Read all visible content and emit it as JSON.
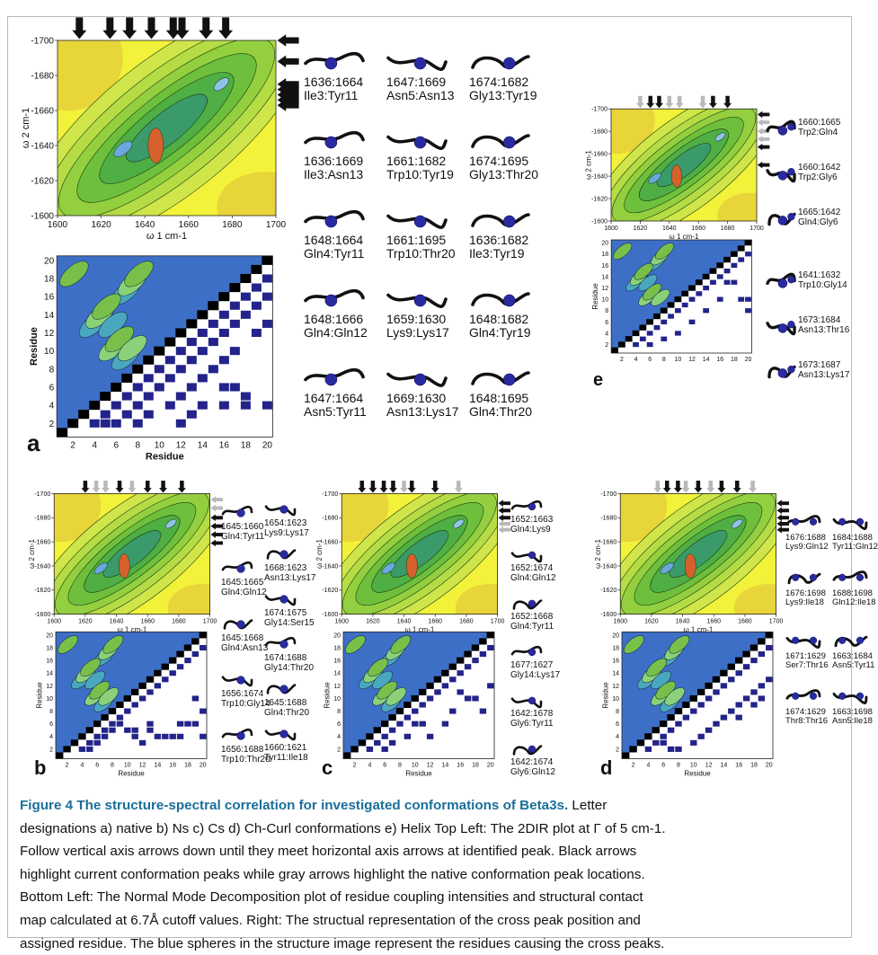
{
  "caption": {
    "figure_label": "Figure 4",
    "title": "The structure-spectral correlation for investigated conformations of Beta3s",
    "line1": "Letter",
    "line2": "designations a) native b) Ns c) Cs d) Ch-Curl conformations e) Helix Top Left: The 2DIR plot at Γ of 5 cm-1.",
    "line3": "Follow vertical axis arrows down until they meet horizontal axis arrows at identified peak. Black arrows",
    "line4": "highlight current conformation peaks while gray arrows highlight the native conformation peak locations.",
    "line5": "Bottom Left: The Normal Mode Decomposition plot of residue coupling intensities and structural contact",
    "line6": "map calculated at 6.7Å cutoff values. Right: The structual representation of the cross peak position and",
    "line7": "assigned residue. The blue spheres in the structure image represent the residues causing the cross peaks."
  },
  "colors": {
    "border": "#b8b8b8",
    "title": "#1a6e9a",
    "sphere": "#2a2aa0",
    "cell": "#23238a",
    "bg_yellow": "#f2f23a",
    "green": "#7fc93a",
    "blue": "#3a6fd0"
  },
  "panels": {
    "a": {
      "letter": "a",
      "ir_xlabel": "ω 1 cm-1",
      "ir_ylabel": "ω 2 cm-1",
      "ir_xticks": [
        "1600",
        "1620",
        "1640",
        "1660",
        "1680",
        "1700"
      ],
      "ir_yticks": [
        "-1700",
        "-1680",
        "-1660",
        "-1640",
        "-1620",
        "-1600"
      ],
      "map_xlabel": "Residue",
      "map_ylabel": "Residue",
      "map_ticks": [
        "2",
        "4",
        "6",
        "8",
        "10",
        "12",
        "14",
        "16",
        "18",
        "20"
      ],
      "structures": [
        {
          "peak": "1636:1664",
          "res": "Ile3:Tyr11"
        },
        {
          "peak": "1647:1669",
          "res": "Asn5:Asn13"
        },
        {
          "peak": "1674:1682",
          "res": "Gly13:Tyr19"
        },
        {
          "peak": "1636:1669",
          "res": "Ile3:Asn13"
        },
        {
          "peak": "1661:1682",
          "res": "Trp10:Tyr19"
        },
        {
          "peak": "1674:1695",
          "res": "Gly13:Thr20"
        },
        {
          "peak": "1648:1664",
          "res": "Gln4:Tyr11"
        },
        {
          "peak": "1661:1695",
          "res": "Trp10:Thr20"
        },
        {
          "peak": "1636:1682",
          "res": "Ile3:Tyr19"
        },
        {
          "peak": "1648:1666",
          "res": "Gln4:Gln12"
        },
        {
          "peak": "1659:1630",
          "res": "Lys9:Lys17"
        },
        {
          "peak": "1648:1682",
          "res": "Gln4:Tyr19"
        },
        {
          "peak": "1647:1664",
          "res": "Asn5:Tyr11"
        },
        {
          "peak": "1669:1630",
          "res": "Asn13:Lys17"
        },
        {
          "peak": "1648:1695",
          "res": "Gln4:Thr20"
        }
      ]
    },
    "e": {
      "letter": "e",
      "ir_xlabel": "ω 1 cm-1",
      "ir_ylabel": "ω 2 cm-1",
      "ir_xticks": [
        "1600",
        "1620",
        "1640",
        "1660",
        "1680",
        "1700"
      ],
      "ir_yticks": [
        "-1700",
        "-1680",
        "-1660",
        "-1640",
        "-1620",
        "-1600"
      ],
      "map_ylabel": "Residue",
      "map_ticks": [
        "2",
        "4",
        "6",
        "8",
        "10",
        "12",
        "14",
        "16",
        "18",
        "20"
      ],
      "structures": [
        {
          "peak": "1660:1665",
          "res": "Trp2:Gln4"
        },
        {
          "peak": "1660:1642",
          "res": "Trp2:Gly6"
        },
        {
          "peak": "1665:1642",
          "res": "Gln4:Gly6"
        },
        {
          "peak": "1641:1632",
          "res": "Trp10:Gly14"
        },
        {
          "peak": "1673:1684",
          "res": "Asn13:Thr16"
        },
        {
          "peak": "1673:1687",
          "res": "Asn13:Lys17"
        }
      ]
    },
    "b": {
      "letter": "b",
      "ir_xlabel": "ω 1 cm-1",
      "ir_ylabel": "ω 2 cm-1",
      "ir_xticks": [
        "1600",
        "1620",
        "1640",
        "1660",
        "1680",
        "1700"
      ],
      "ir_yticks": [
        "-1700",
        "-1680",
        "-1660",
        "-1640",
        "-1620",
        "-1600"
      ],
      "map_xlabel": "Residue",
      "map_ylabel": "Residue",
      "map_ticks": [
        "2",
        "4",
        "6",
        "8",
        "10",
        "12",
        "14",
        "16",
        "18",
        "20"
      ],
      "structures": [
        {
          "peak": "1645:1660",
          "res": "Gln4:Tyr11"
        },
        {
          "peak": "1654:1623",
          "res": "Lys9:Lys17"
        },
        {
          "peak": "1668:1623",
          "res": "Asn13:Lys17"
        },
        {
          "peak": "1645:1665",
          "res": "Gln4:Gln12"
        },
        {
          "peak": "1674:1675",
          "res": "Gly14:Ser15"
        },
        {
          "peak": "1645:1668",
          "res": "Gln4:Asn13"
        },
        {
          "peak": "1674:1688",
          "res": "Gly14:Thr20"
        },
        {
          "peak": "1656:1674",
          "res": "Trp10:Gly14"
        },
        {
          "peak": "1645:1688",
          "res": "Gln4:Thr20"
        },
        {
          "peak": "1656:1688",
          "res": "Trp10:Thr20"
        },
        {
          "peak": "1660:1621",
          "res": "Tyr11:Ile18"
        }
      ]
    },
    "c": {
      "letter": "c",
      "ir_xlabel": "ω 1 cm-1",
      "ir_ylabel": "ω 2 cm-1",
      "ir_xticks": [
        "1600",
        "1620",
        "1640",
        "1660",
        "1680",
        "1700"
      ],
      "ir_yticks": [
        "-1700",
        "-1680",
        "-1660",
        "-1640",
        "-1620",
        "-1600"
      ],
      "map_xlabel": "Residue",
      "map_ylabel": "Residue",
      "map_ticks": [
        "2",
        "4",
        "6",
        "8",
        "10",
        "12",
        "14",
        "16",
        "18",
        "20"
      ],
      "structures": [
        {
          "peak": "1652:1663",
          "res": "Gln4:Lys9"
        },
        {
          "peak": "1652:1674",
          "res": "Gln4:Gln12"
        },
        {
          "peak": "1652:1668",
          "res": "Gln4:Tyr11"
        },
        {
          "peak": "1677:1627",
          "res": "Gly14:Lys17"
        },
        {
          "peak": "1642:1678",
          "res": "Gly6:Tyr11"
        },
        {
          "peak": "1642:1674",
          "res": "Gly6:Gln12"
        }
      ]
    },
    "d": {
      "letter": "d",
      "ir_xlabel": "ω 1 cm-1",
      "ir_ylabel": "ω 2 cm-1",
      "ir_xticks": [
        "1600",
        "1620",
        "1640",
        "1660",
        "1680",
        "1700"
      ],
      "ir_yticks": [
        "-1700",
        "-1680",
        "-1660",
        "-1640",
        "-1620",
        "-1600"
      ],
      "map_xlabel": "Residue",
      "map_ylabel": "Residue",
      "map_ticks": [
        "2",
        "4",
        "6",
        "8",
        "10",
        "12",
        "14",
        "16",
        "18",
        "20"
      ],
      "structures": [
        {
          "peak": "1676:1688",
          "res": "Lys9:Gln12"
        },
        {
          "peak": "1684:1688",
          "res": "Tyr11:Gln12"
        },
        {
          "peak": "1676:1698",
          "res": "Lys9:Ile18"
        },
        {
          "peak": "1688:1698",
          "res": "Gln12:Ile18"
        },
        {
          "peak": "1671:1629",
          "res": "Ser7:Thr16"
        },
        {
          "peak": "1663:1684",
          "res": "Asn5:Tyr11"
        },
        {
          "peak": "1674:1629",
          "res": "Thr8:Thr16"
        },
        {
          "peak": "1663:1698",
          "res": "Asn5:Ile18"
        }
      ]
    }
  }
}
